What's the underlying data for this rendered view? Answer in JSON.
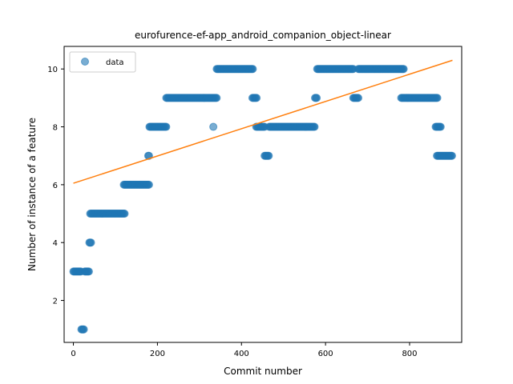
{
  "chart_data": {
    "type": "scatter",
    "title": "eurofurence-ef-app_android_companion_object-linear",
    "xlabel": "Commit number",
    "ylabel": "Number of instance of a feature",
    "xlim": [
      -22,
      924
    ],
    "ylim": [
      0.55,
      10.78
    ],
    "xticks": [
      0,
      200,
      400,
      600,
      800
    ],
    "yticks": [
      2,
      4,
      6,
      8,
      10
    ],
    "grid": false,
    "legend": {
      "position": "top-left",
      "entries": [
        "data"
      ]
    },
    "colors": {
      "scatter": "#1f77b4",
      "fit": "#ff7f0e"
    },
    "series": [
      {
        "name": "data",
        "kind": "scatter",
        "segments": [
          {
            "x_start": 0,
            "x_end": 18,
            "y": 3
          },
          {
            "x_start": 19,
            "x_end": 26,
            "y": 1
          },
          {
            "x_start": 27,
            "x_end": 37,
            "y": 3
          },
          {
            "x_start": 38,
            "x_end": 42,
            "y": 4
          },
          {
            "x_start": 40,
            "x_end": 123,
            "y": 5
          },
          {
            "x_start": 120,
            "x_end": 180,
            "y": 6
          },
          {
            "x_start": 178,
            "x_end": 180,
            "y": 7
          },
          {
            "x_start": 181,
            "x_end": 222,
            "y": 8
          },
          {
            "x_start": 221,
            "x_end": 342,
            "y": 9
          },
          {
            "x_start": 333,
            "x_end": 333,
            "y": 8
          },
          {
            "x_start": 341,
            "x_end": 427,
            "y": 10
          },
          {
            "x_start": 426,
            "x_end": 436,
            "y": 9
          },
          {
            "x_start": 435,
            "x_end": 455,
            "y": 8
          },
          {
            "x_start": 455,
            "x_end": 466,
            "y": 7
          },
          {
            "x_start": 466,
            "x_end": 575,
            "y": 8
          },
          {
            "x_start": 575,
            "x_end": 580,
            "y": 9
          },
          {
            "x_start": 580,
            "x_end": 666,
            "y": 10
          },
          {
            "x_start": 666,
            "x_end": 678,
            "y": 9
          },
          {
            "x_start": 678,
            "x_end": 786,
            "y": 10
          },
          {
            "x_start": 780,
            "x_end": 866,
            "y": 9
          },
          {
            "x_start": 862,
            "x_end": 875,
            "y": 8
          },
          {
            "x_start": 865,
            "x_end": 902,
            "y": 7
          }
        ]
      },
      {
        "name": "",
        "kind": "line",
        "x": [
          0,
          902
        ],
        "y": [
          6.05,
          10.3
        ]
      }
    ]
  }
}
